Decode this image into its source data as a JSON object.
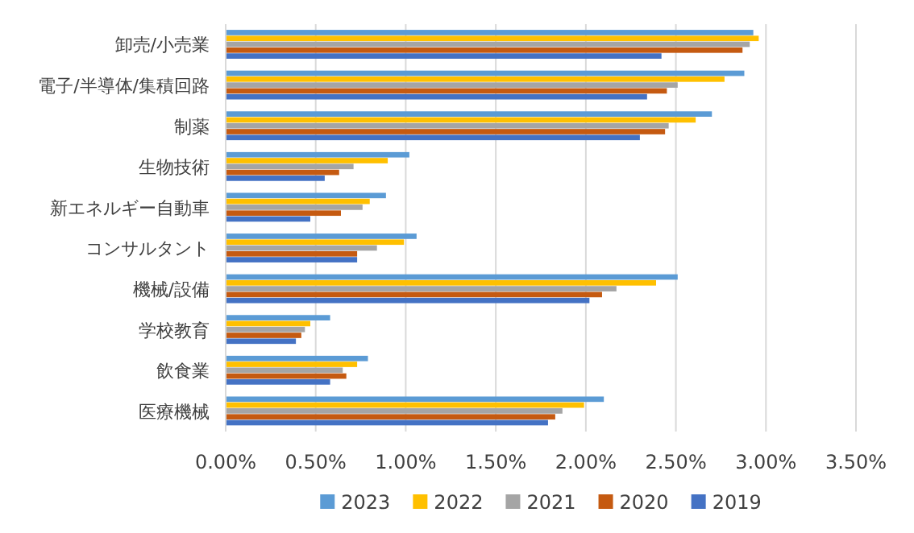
{
  "chart_data": {
    "type": "bar",
    "orientation": "horizontal",
    "categories": [
      "卸売/小売業",
      "電子/半導体/集積回路",
      "制薬",
      "生物技術",
      "新エネルギー自動車",
      "コンサルタント",
      "機械/設備",
      "学校教育",
      "飲食業",
      "医療機械"
    ],
    "series": [
      {
        "name": "2023",
        "color": "#5b9bd5",
        "values": [
          2.93,
          2.88,
          2.7,
          1.02,
          0.89,
          1.06,
          2.51,
          0.58,
          0.79,
          2.1
        ]
      },
      {
        "name": "2022",
        "color": "#ffc000",
        "values": [
          2.96,
          2.77,
          2.61,
          0.9,
          0.8,
          0.99,
          2.39,
          0.47,
          0.73,
          1.99
        ]
      },
      {
        "name": "2021",
        "color": "#a5a5a5",
        "values": [
          2.91,
          2.51,
          2.46,
          0.71,
          0.76,
          0.84,
          2.17,
          0.44,
          0.65,
          1.87
        ]
      },
      {
        "name": "2020",
        "color": "#c55a11",
        "values": [
          2.87,
          2.45,
          2.44,
          0.63,
          0.64,
          0.73,
          2.09,
          0.42,
          0.67,
          1.83
        ]
      },
      {
        "name": "2019",
        "color": "#4472c4",
        "values": [
          2.42,
          2.34,
          2.3,
          0.55,
          0.47,
          0.73,
          2.02,
          0.39,
          0.58,
          1.79
        ]
      }
    ],
    "xlim": [
      0,
      3.5
    ],
    "xticks": [
      {
        "value": 0,
        "label": "0.00%"
      },
      {
        "value": 0.5,
        "label": "0.50%"
      },
      {
        "value": 1,
        "label": "1.00%"
      },
      {
        "value": 1.5,
        "label": "1.50%"
      },
      {
        "value": 2,
        "label": "2.00%"
      },
      {
        "value": 2.5,
        "label": "2.50%"
      },
      {
        "value": 3,
        "label": "3.00%"
      },
      {
        "value": 3.5,
        "label": "3.50%"
      }
    ],
    "grid": "x",
    "legend": "bottom"
  }
}
